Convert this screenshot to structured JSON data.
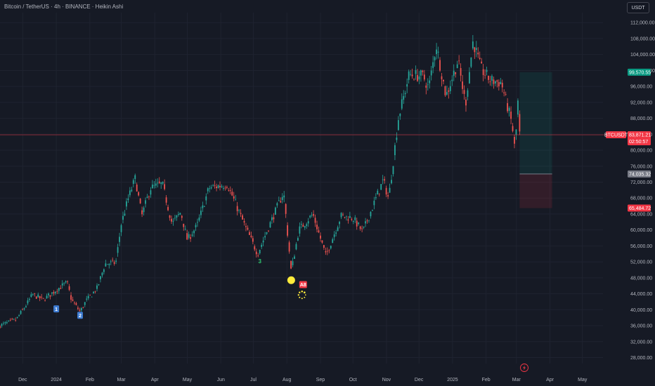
{
  "header": {
    "title": "Bitcoin / TetherUS · 4h · BINANCE · Heikin Ashi",
    "currency_label": "USDT"
  },
  "colors": {
    "background": "#161a25",
    "up": "#26a69a",
    "down": "#ef5350",
    "grid": "#1f2330",
    "axis_text": "#b2b5be",
    "price_line": "#f23645",
    "target_green": "#089981",
    "stop_red": "#f23645",
    "entry_gray": "#787b86",
    "marker_blue": "#2962ff",
    "signal_yellow": "#ffeb3b",
    "signal_green": "#2ecc71"
  },
  "chart_data": {
    "type": "candlestick",
    "style": "Heikin Ashi",
    "symbol": "BTCUSDT",
    "interval": "4h",
    "exchange": "BINANCE",
    "y_axis": {
      "ticks": [
        "112,000.00",
        "108,000.00",
        "104,000.00",
        "100,000.00",
        "96,000.00",
        "92,000.00",
        "88,000.00",
        "84,000.00",
        "80,000.00",
        "76,000.00",
        "72,000.00",
        "68,000.00",
        "64,000.00",
        "60,000.00",
        "56,000.00",
        "52,000.00",
        "48,000.00",
        "44,000.00",
        "40,000.00",
        "36,000.00",
        "32,000.00",
        "28,000.00"
      ],
      "range": [
        26500,
        114500
      ],
      "scale": "linear"
    },
    "x_axis": {
      "ticks": [
        {
          "label": "Dec",
          "date": "2023-12-01"
        },
        {
          "label": "2024",
          "date": "2024-01-01"
        },
        {
          "label": "Feb",
          "date": "2024-02-01"
        },
        {
          "label": "Mar",
          "date": "2024-03-01"
        },
        {
          "label": "Apr",
          "date": "2024-04-01"
        },
        {
          "label": "May",
          "date": "2024-05-01"
        },
        {
          "label": "Jun",
          "date": "2024-06-01"
        },
        {
          "label": "Jul",
          "date": "2024-07-01"
        },
        {
          "label": "Aug",
          "date": "2024-08-01"
        },
        {
          "label": "Sep",
          "date": "2024-09-01"
        },
        {
          "label": "Oct",
          "date": "2024-10-01"
        },
        {
          "label": "Nov",
          "date": "2024-11-01"
        },
        {
          "label": "Dec",
          "date": "2024-12-01"
        },
        {
          "label": "2025",
          "date": "2025-01-01"
        },
        {
          "label": "Feb",
          "date": "2025-02-01"
        },
        {
          "label": "Mar",
          "date": "2025-03-01"
        },
        {
          "label": "Apr",
          "date": "2025-04-01"
        },
        {
          "label": "May",
          "date": "2025-05-01"
        }
      ],
      "range": [
        "2023-11-10",
        "2025-05-20"
      ]
    },
    "price_path": [
      [
        "2023-11-10",
        36000
      ],
      [
        "2023-11-25",
        37500
      ],
      [
        "2023-12-05",
        41500
      ],
      [
        "2023-12-10",
        43800
      ],
      [
        "2023-12-20",
        42500
      ],
      [
        "2024-01-02",
        45200
      ],
      [
        "2024-01-11",
        46800
      ],
      [
        "2024-01-15",
        42500
      ],
      [
        "2024-01-23",
        39500
      ],
      [
        "2024-01-28",
        42000
      ],
      [
        "2024-02-08",
        45500
      ],
      [
        "2024-02-15",
        51500
      ],
      [
        "2024-02-25",
        51800
      ],
      [
        "2024-03-01",
        61500
      ],
      [
        "2024-03-07",
        67500
      ],
      [
        "2024-03-14",
        73000
      ],
      [
        "2024-03-20",
        63500
      ],
      [
        "2024-03-28",
        70500
      ],
      [
        "2024-04-08",
        71500
      ],
      [
        "2024-04-17",
        61500
      ],
      [
        "2024-04-25",
        64500
      ],
      [
        "2024-05-01",
        57500
      ],
      [
        "2024-05-10",
        61000
      ],
      [
        "2024-05-21",
        70500
      ],
      [
        "2024-06-07",
        71500
      ],
      [
        "2024-06-24",
        60500
      ],
      [
        "2024-07-05",
        54000
      ],
      [
        "2024-07-14",
        60000
      ],
      [
        "2024-07-29",
        69500
      ],
      [
        "2024-08-05",
        49500
      ],
      [
        "2024-08-12",
        60000
      ],
      [
        "2024-08-25",
        64000
      ],
      [
        "2024-09-06",
        53500
      ],
      [
        "2024-09-20",
        63500
      ],
      [
        "2024-10-01",
        63000
      ],
      [
        "2024-10-10",
        59500
      ],
      [
        "2024-10-29",
        72500
      ],
      [
        "2024-11-03",
        67800
      ],
      [
        "2024-11-12",
        88000
      ],
      [
        "2024-11-22",
        99000
      ],
      [
        "2024-12-05",
        98500
      ],
      [
        "2024-12-10",
        95500
      ],
      [
        "2024-12-17",
        106500
      ],
      [
        "2024-12-26",
        93500
      ],
      [
        "2025-01-06",
        102500
      ],
      [
        "2025-01-13",
        91500
      ],
      [
        "2025-01-20",
        107500
      ],
      [
        "2025-01-27",
        100500
      ],
      [
        "2025-02-05",
        97500
      ],
      [
        "2025-02-15",
        97000
      ],
      [
        "2025-02-25",
        86500
      ],
      [
        "2025-02-28",
        79000
      ],
      [
        "2025-03-02",
        94000
      ],
      [
        "2025-03-04",
        83871
      ]
    ],
    "current_price": {
      "value": 83871.21,
      "label": "83,871.21",
      "countdown": "02:50:57",
      "symbol_tag": "BTCUSDT"
    },
    "position": {
      "type": "long",
      "entry": {
        "value": 74035.32,
        "label": "74,035.32"
      },
      "target": {
        "value": 99570.55,
        "label": "99,570.55"
      },
      "stop": {
        "value": 65484.72,
        "label": "65,484.72"
      },
      "start_date": "2025-03-04",
      "end_date": "2025-04-03"
    },
    "annotations": [
      {
        "text": "1",
        "date": "2024-01-01",
        "price": 40200,
        "style": "blue-box"
      },
      {
        "text": "2",
        "date": "2024-01-23",
        "price": 38600,
        "style": "blue-box"
      },
      {
        "text": "3",
        "date": "2024-07-07",
        "price": 52200,
        "style": "green-text"
      },
      {
        "text": "A8",
        "date": "2024-08-16",
        "price": 46300,
        "style": "red-box"
      }
    ],
    "signals": [
      {
        "date": "2024-08-05",
        "price": 47400,
        "style": "yellow-dot"
      }
    ],
    "loading_indicator": {
      "date": "2024-08-15",
      "price": 43700
    },
    "lightning_icon": "lightning-icon"
  }
}
